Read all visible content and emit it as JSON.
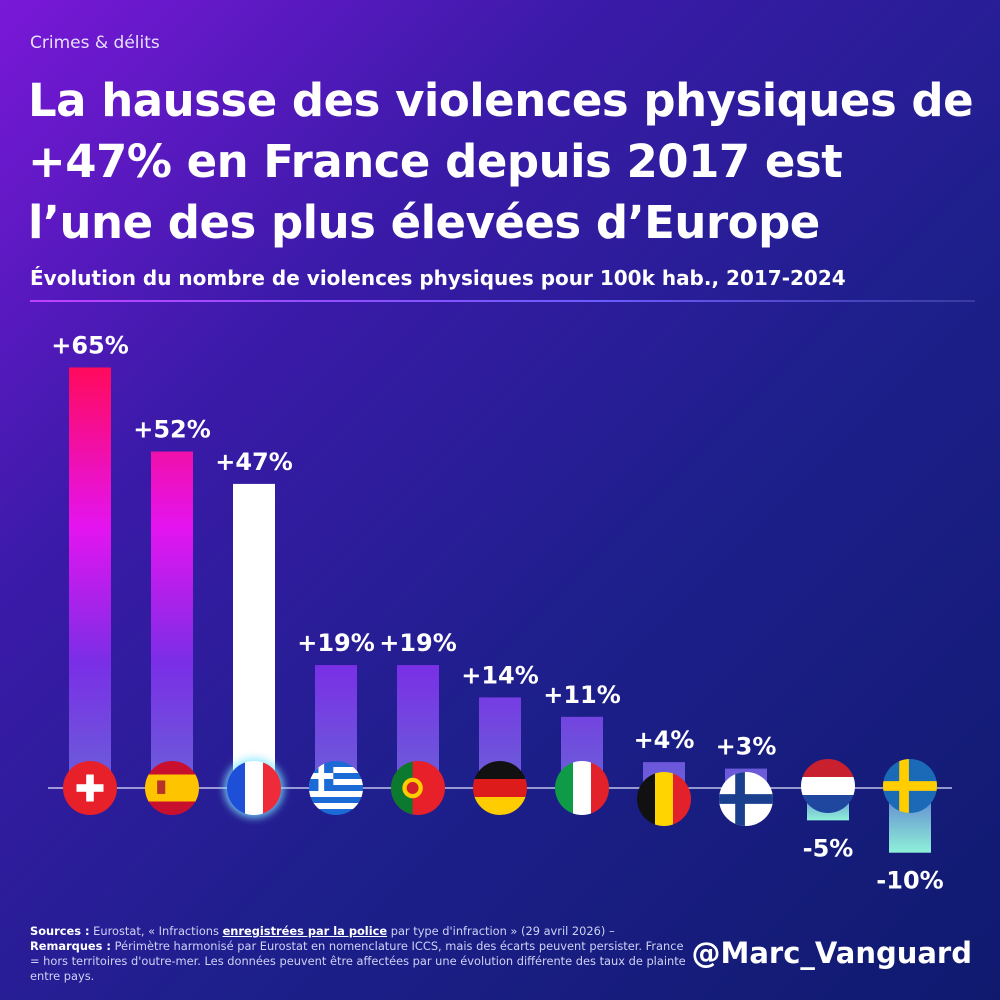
{
  "header": {
    "section": "Crimes & délits",
    "title": "La hausse des violences physiques de +47% en France depuis 2017 est l’une des plus élevées d’Europe",
    "subtitle": "Évolution du nombre de violences physiques pour 100k hab., 2017-2024"
  },
  "chart_data": {
    "type": "bar",
    "categories": [
      "Suisse",
      "Espagne",
      "France",
      "Grèce",
      "Portugal",
      "Allemagne",
      "Italie",
      "Belgique",
      "Finlande",
      "Pays-Bas",
      "Suède"
    ],
    "flag_icons": [
      "flag-switzerland-icon",
      "flag-spain-icon",
      "flag-france-icon",
      "flag-greece-icon",
      "flag-portugal-icon",
      "flag-germany-icon",
      "flag-italy-icon",
      "flag-belgium-icon",
      "flag-finland-icon",
      "flag-netherlands-icon",
      "flag-sweden-icon"
    ],
    "values": [
      65,
      52,
      47,
      19,
      19,
      14,
      11,
      4,
      3,
      -5,
      -10
    ],
    "labels": [
      "+65%",
      "+52%",
      "+47%",
      "+19%",
      "+19%",
      "+14%",
      "+11%",
      "+4%",
      "+3%",
      "-5%",
      "-10%"
    ],
    "highlight": "France",
    "ylim": [
      -12,
      70
    ],
    "colors": {
      "top": "#ff0a5c",
      "mid": "#e414f0",
      "low": "#7a2ee6",
      "base": "#6a60d8",
      "negative": "#8ff0d8",
      "highlight": "#ffffff"
    }
  },
  "footer": {
    "sources_label": "Sources :",
    "sources_text_1": "Eurostat, « Infractions ",
    "sources_emphasis": "enregistrées par la police",
    "sources_text_2": " par type d'infraction » (29 avril 2026) –",
    "remarks_label": "Remarques :",
    "remarks_text": "Périmètre harmonisé par Eurostat en nomenclature ICCS, mais des écarts peuvent persister. France = hors territoires d'outre-mer. Les données peuvent être affectées par une évolution différente des taux de plainte entre pays."
  },
  "handle": "@Marc_Vanguard"
}
